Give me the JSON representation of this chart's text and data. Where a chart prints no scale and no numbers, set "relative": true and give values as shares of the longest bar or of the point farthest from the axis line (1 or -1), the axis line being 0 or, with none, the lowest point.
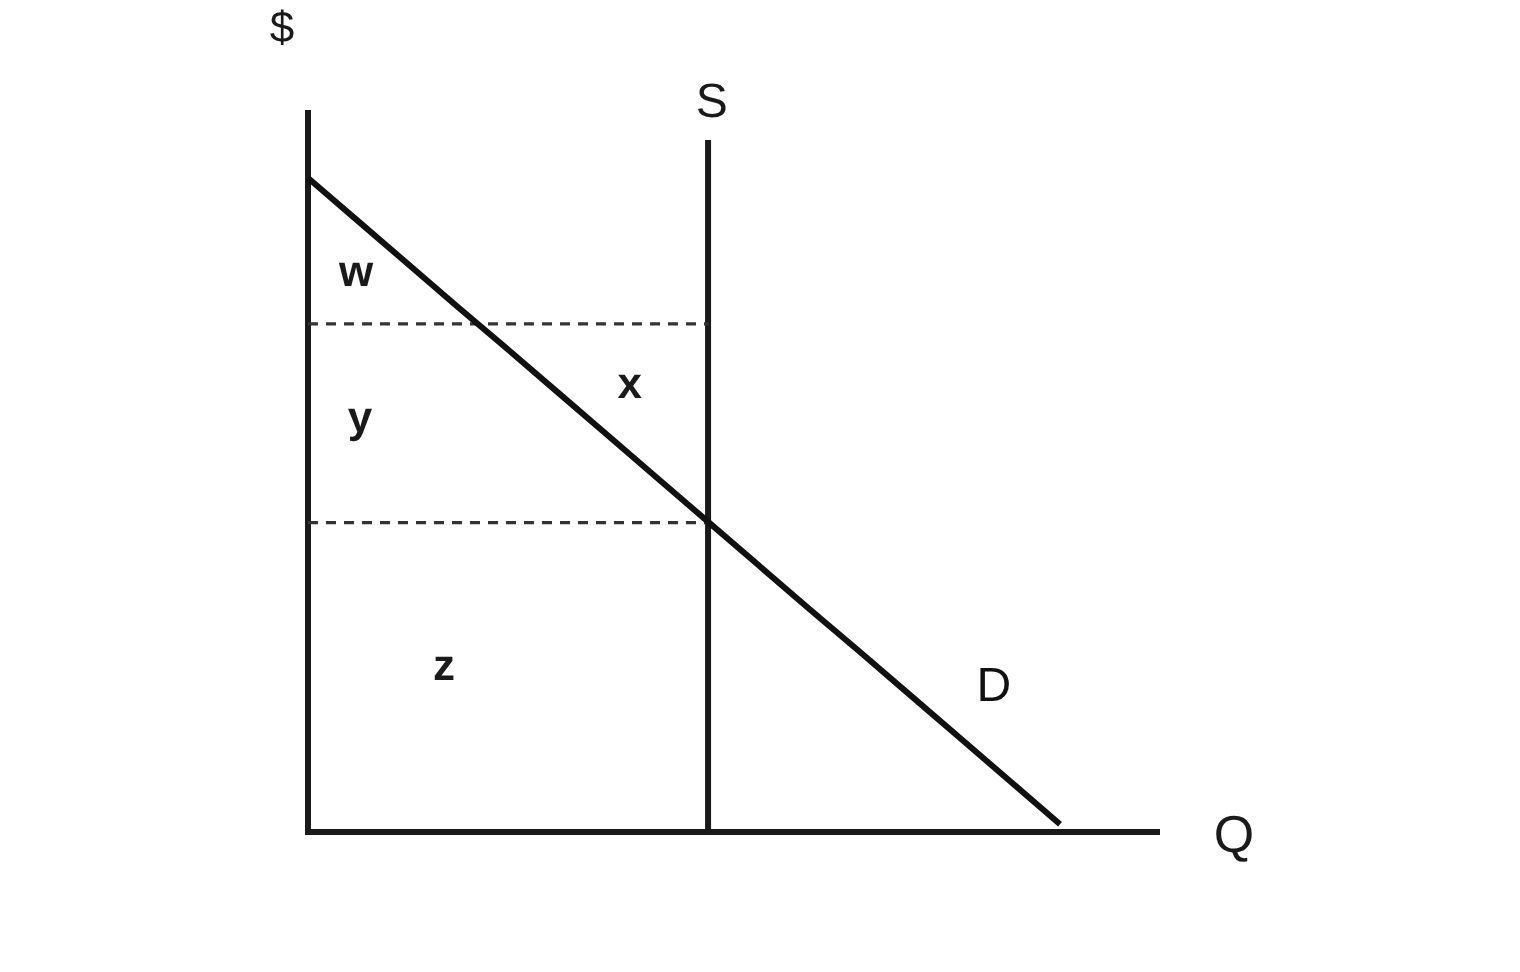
{
  "chart_data": {
    "type": "line",
    "relative": true,
    "xlabel": "Q",
    "ylabel": "$",
    "legend": false,
    "marker": "none",
    "line_style": "solid",
    "categories": [
      null,
      null,
      null,
      null,
      null,
      null,
      null,
      null,
      null,
      null,
      null,
      null,
      null,
      null,
      null,
      null
    ],
    "series": [
      {
        "name": "D",
        "color": "#111111",
        "values": [
          1,
          0.934,
          0.868,
          0.802,
          0.737,
          0.671,
          0.605,
          0.539,
          0.473,
          0.407,
          0.341,
          0.276,
          0.21,
          0.144,
          0.078,
          0.012
        ]
      },
      {
        "color": "#333333",
        "line_style": "dashed",
        "values": [
          0.777,
          0.777,
          0.777,
          0.777,
          0.777,
          0.777,
          0.777,
          0.777,
          0.777,
          null,
          null,
          null,
          null,
          null,
          null,
          null
        ]
      },
      {
        "color": "#333333",
        "line_style": "dashed",
        "values": [
          0.473,
          0.473,
          0.473,
          0.473,
          0.473,
          0.473,
          0.473,
          0.473,
          0.473,
          null,
          null,
          null,
          null,
          null,
          null,
          null
        ]
      }
    ],
    "annotations": [
      "S",
      "w",
      "x",
      "y",
      "z"
    ]
  }
}
